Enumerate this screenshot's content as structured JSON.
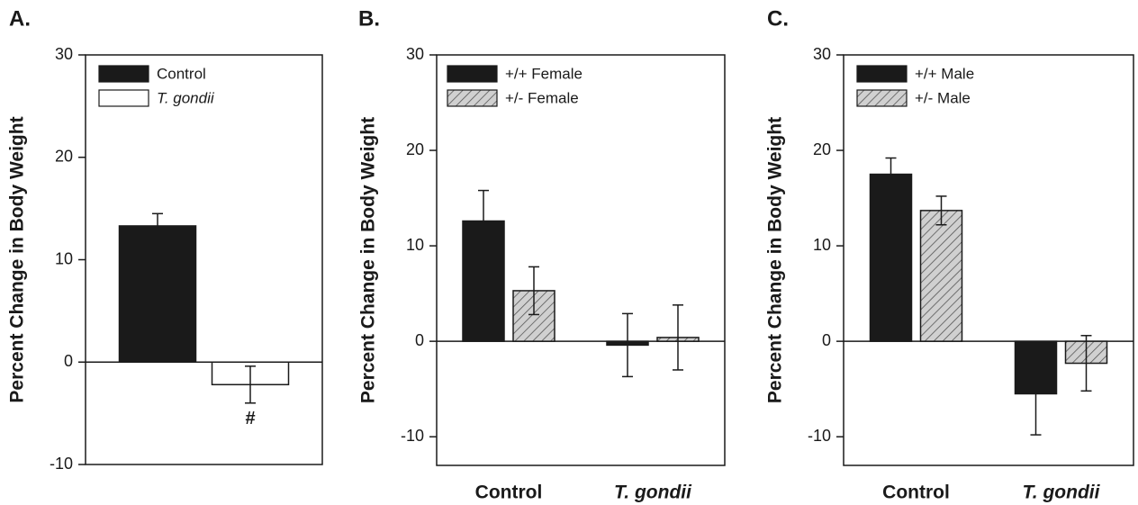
{
  "chart_data": [
    {
      "type": "bar",
      "title": "A.",
      "y_label": "Percent Change in Body Weight",
      "categories": [
        null
      ],
      "ylim": [
        -10,
        30
      ],
      "yticks": [
        -10,
        0,
        10,
        20,
        30
      ],
      "legend": "top-left",
      "annotation": "#",
      "series": [
        {
          "name": "Control",
          "color": "#1a1a1a",
          "values": [
            13.3
          ],
          "errors": [
            1.2
          ]
        },
        {
          "name": "T. gondii",
          "color": "#ffffff",
          "values": [
            -2.2
          ],
          "errors": [
            1.8
          ]
        }
      ]
    },
    {
      "type": "bar",
      "title": "B.",
      "y_label": "Percent Change in Body Weight",
      "categories": [
        "Control",
        "T. gondii"
      ],
      "ylim": [
        -13,
        30
      ],
      "yticks": [
        -10,
        0,
        10,
        20,
        30
      ],
      "legend": "top-left",
      "series": [
        {
          "name": "+/+ Female",
          "color": "#1a1a1a",
          "values": [
            12.6,
            -0.4
          ],
          "errors": [
            3.2,
            3.3
          ]
        },
        {
          "name": "+/-  Female",
          "color": "#c8c8c8",
          "pattern": "hatch",
          "values": [
            5.3,
            0.4
          ],
          "errors": [
            2.5,
            3.4
          ]
        }
      ]
    },
    {
      "type": "bar",
      "title": "C.",
      "y_label": "Percent Change in Body Weight",
      "categories": [
        "Control",
        "T. gondii"
      ],
      "ylim": [
        -13,
        30
      ],
      "yticks": [
        -10,
        0,
        10,
        20,
        30
      ],
      "legend": "top-left",
      "series": [
        {
          "name": "+/+ Male",
          "color": "#1a1a1a",
          "values": [
            17.5,
            -5.5
          ],
          "errors": [
            1.7,
            4.3
          ]
        },
        {
          "name": "+/-  Male",
          "color": "#c8c8c8",
          "pattern": "hatch",
          "values": [
            13.7,
            -2.3
          ],
          "errors": [
            1.5,
            2.9
          ]
        }
      ]
    }
  ]
}
